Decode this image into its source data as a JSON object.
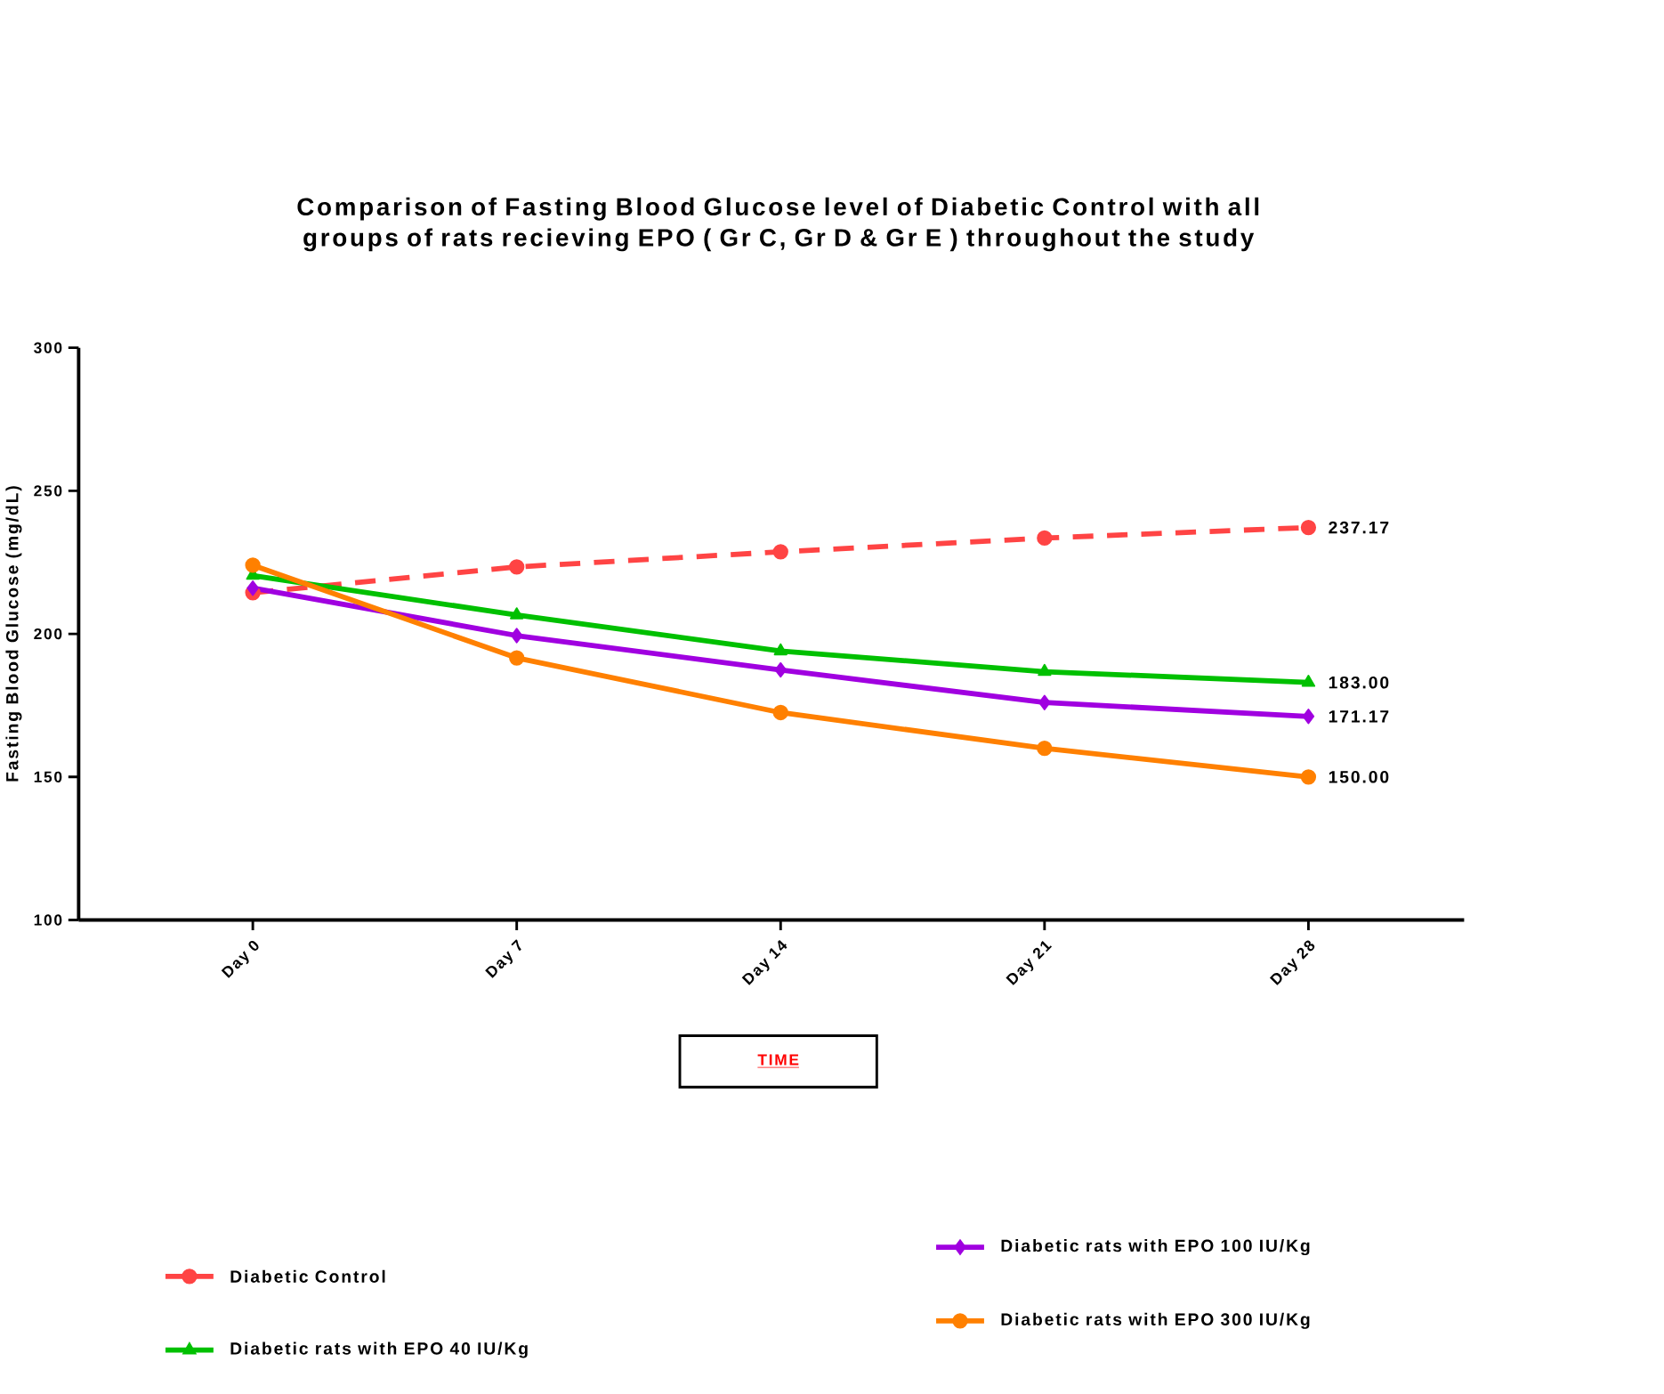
{
  "chart_data": {
    "type": "line",
    "title": "Comparison of Fasting Blood Glucose level of Diabetic Control with all groups of rats recieving EPO ( Gr C, Gr D & Gr E ) throughout the study",
    "xlabel": "TIME",
    "ylabel": "Fasting Blood Glucose (mg/dL)",
    "categories": [
      "Day 0",
      "Day 7",
      "Day 14",
      "Day 21",
      "Day 28"
    ],
    "ylim": [
      100,
      300
    ],
    "yticks": [
      100,
      150,
      200,
      250,
      300
    ],
    "legend": "bottom",
    "series": [
      {
        "name": "Diabetic Control",
        "color": "#ff4444",
        "marker": "circle",
        "line_style": "dashed",
        "values": [
          214.4,
          223.4,
          228.7,
          233.5,
          237.17
        ],
        "value_labels": [
          null,
          null,
          null,
          null,
          "237.17"
        ]
      },
      {
        "name": "Diabetic rats with EPO 40 IU/Kg",
        "color": "#00c000",
        "marker": "triangle",
        "line_style": "solid",
        "values": [
          220.4,
          206.6,
          194,
          186.8,
          183.0
        ],
        "value_labels": [
          null,
          null,
          null,
          null,
          "183.00"
        ]
      },
      {
        "name": "Diabetic rats with EPO 100 IU/Kg",
        "color": "#a000e0",
        "marker": "diamond",
        "line_style": "solid",
        "values": [
          216,
          199.4,
          187.4,
          176,
          171.17
        ],
        "value_labels": [
          null,
          null,
          null,
          null,
          "171.17"
        ]
      },
      {
        "name": "Diabetic rats with EPO 300 IU/Kg",
        "color": "#ff8000",
        "marker": "circle",
        "line_style": "solid",
        "values": [
          224,
          191.6,
          172.5,
          160,
          150.0
        ],
        "value_labels": [
          null,
          null,
          null,
          null,
          "150.00"
        ]
      }
    ]
  }
}
